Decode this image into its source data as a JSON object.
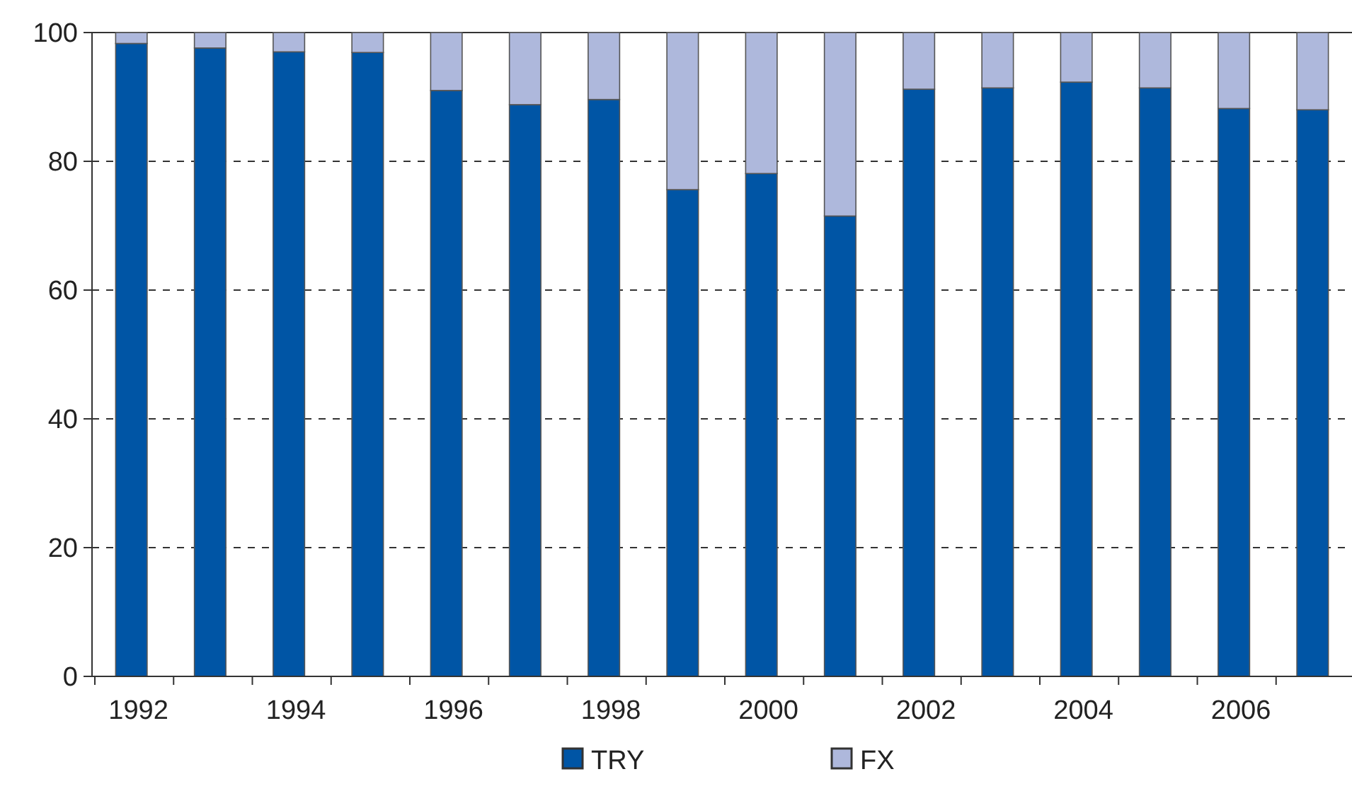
{
  "chart_data": {
    "type": "bar",
    "stacked": true,
    "categories": [
      "1992",
      null,
      "1994",
      null,
      "1996",
      null,
      "1998",
      null,
      "2000",
      null,
      "2002",
      null,
      "2004",
      null,
      "2006",
      null
    ],
    "series": [
      {
        "name": "TRY",
        "color": "#0055a5",
        "values": [
          98.3,
          97.6,
          97.0,
          96.9,
          91.0,
          88.8,
          89.6,
          75.6,
          78.1,
          71.5,
          91.2,
          91.4,
          92.3,
          91.4,
          88.2,
          88.0
        ]
      },
      {
        "name": "FX",
        "color": "#aeb8dc",
        "values": [
          1.7,
          2.4,
          3.0,
          3.1,
          9.0,
          11.2,
          10.4,
          24.4,
          21.9,
          28.5,
          8.8,
          8.6,
          7.7,
          8.6,
          11.8,
          12.0
        ]
      }
    ],
    "ylim": [
      0,
      100
    ],
    "yticks": [
      0,
      20,
      40,
      60,
      80,
      100
    ],
    "grid": "y",
    "legend": "bottom"
  }
}
